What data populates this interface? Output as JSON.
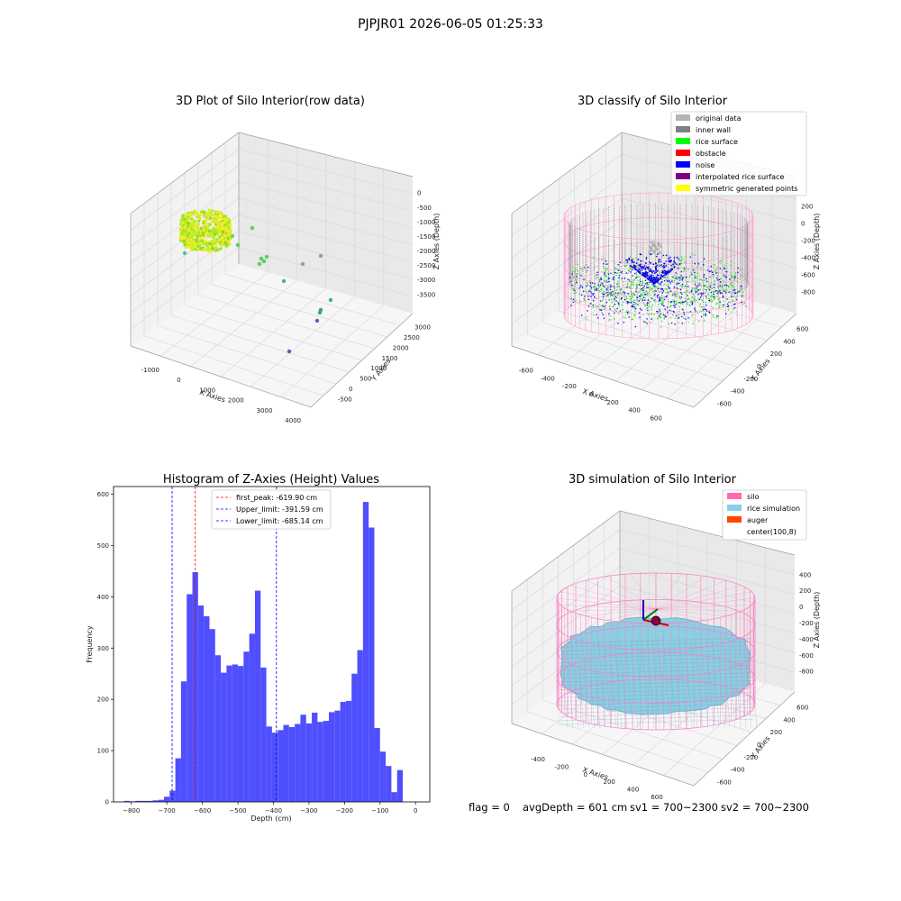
{
  "figure": {
    "suptitle": "PJPJR01 2026-06-05 01:25:33"
  },
  "panels": {
    "raw": {
      "title": "3D Plot of Silo Interior(row data)",
      "xlabel": "X Axies",
      "ylabel": "Y Axies",
      "zlabel": "Z Axies (Depth)",
      "xticks": [
        "-1000",
        "0",
        "1000",
        "2000",
        "3000",
        "4000"
      ],
      "yticks": [
        "-500",
        "0",
        "500",
        "1000",
        "1500",
        "2000",
        "2500",
        "3000"
      ],
      "zticks": [
        "0",
        "-500",
        "-1000",
        "-1500",
        "-2000",
        "-2500",
        "-3000",
        "-3500"
      ]
    },
    "classify": {
      "title": "3D classify of Silo Interior",
      "xlabel": "X Axies",
      "ylabel": "Y Axies",
      "zlabel": "Z Axies (Depth)",
      "xticks": [
        "-600",
        "-400",
        "-200",
        "0",
        "200",
        "400",
        "600"
      ],
      "yticks": [
        "600",
        "400",
        "200",
        "0",
        "-200",
        "-400",
        "-600"
      ],
      "zticks": [
        "200",
        "0",
        "-200",
        "-400",
        "-600",
        "-800"
      ],
      "legend": [
        {
          "label": "original data",
          "color": "#b4b4b4"
        },
        {
          "label": "inner wall",
          "color": "#808080"
        },
        {
          "label": "rice surface",
          "color": "#00ff00"
        },
        {
          "label": "obstacle",
          "color": "#ff0000"
        },
        {
          "label": "noise",
          "color": "#0000ff"
        },
        {
          "label": "interpolated rice surface",
          "color": "#800080"
        },
        {
          "label": "symmetric generated points",
          "color": "#ffff00"
        }
      ]
    },
    "histogram": {
      "title": "Histogram of Z-Axies (Height) Values",
      "xlabel": "Depth (cm)",
      "ylabel": "Frequency",
      "legend": [
        {
          "label": "first_peak: -619.90 cm",
          "color": "#ff0000"
        },
        {
          "label": "Upper_limit: -391.59 cm",
          "color": "#0000ff"
        },
        {
          "label": "Lower_limit: -685.14 cm",
          "color": "#0000ff"
        }
      ],
      "bar_color": "#4f4ffe"
    },
    "simulation": {
      "title": "3D simulation of Silo Interior",
      "xlabel": "X Axies",
      "ylabel": "Y Axies",
      "zlabel": "Z Axies (Depth)",
      "xticks": [
        "-400",
        "-200",
        "0",
        "200",
        "400",
        "600"
      ],
      "yticks": [
        "600",
        "400",
        "200",
        "0",
        "-200",
        "-400",
        "-600"
      ],
      "zticks": [
        "400",
        "200",
        "0",
        "-200",
        "-400",
        "-600",
        "-800"
      ],
      "legend": [
        {
          "label": "silo",
          "color": "#ff69b4"
        },
        {
          "label": "rice simulation",
          "color": "#87ceeb"
        },
        {
          "label": "auger",
          "color": "#ff4500"
        },
        {
          "label": "center(100,8)",
          "color": null
        }
      ]
    }
  },
  "status": {
    "flag": "flag = 0",
    "avgDepth": "avgDepth = 601 cm",
    "sv1": "sv1 = 700~2300",
    "sv2": "sv2 = 700~2300"
  },
  "chart_data": [
    {
      "type": "scatter",
      "title": "3D Plot of Silo Interior(row data)",
      "projection": "3d",
      "xlabel": "X Axies",
      "ylabel": "Y Axies",
      "zlabel": "Z Axies (Depth)",
      "xlim": [
        -1400,
        4300
      ],
      "ylim": [
        -700,
        3300
      ],
      "zlim": [
        -3800,
        200
      ],
      "grid": true
    },
    {
      "type": "scatter",
      "title": "3D classify of Silo Interior",
      "projection": "3d",
      "xlabel": "X Axies",
      "ylabel": "Y Axies",
      "zlabel": "Z Axies (Depth)",
      "xlim": [
        -650,
        700
      ],
      "ylim": [
        -650,
        700
      ],
      "zlim": [
        -950,
        250
      ],
      "legend_position": "top-right",
      "grid": true
    },
    {
      "type": "bar",
      "title": "Histogram of Z-Axies (Height) Values",
      "xlabel": "Depth (cm)",
      "ylabel": "Frequency",
      "xlim": [
        -850,
        40
      ],
      "ylim": [
        0,
        615
      ],
      "xticks": [
        -800,
        -700,
        -600,
        -500,
        -400,
        -300,
        -200,
        -100,
        0
      ],
      "yticks": [
        0,
        100,
        200,
        300,
        400,
        500,
        600
      ],
      "bin_width": 16,
      "bin_starts": [
        -820,
        -804,
        -788,
        -772,
        -756,
        -740,
        -724,
        -708,
        -692,
        -676,
        -660,
        -644,
        -628,
        -612,
        -596,
        -580,
        -564,
        -548,
        -532,
        -516,
        -500,
        -484,
        -468,
        -452,
        -436,
        -420,
        -404,
        -388,
        -372,
        -356,
        -340,
        -324,
        -308,
        -292,
        -276,
        -260,
        -244,
        -228,
        -212,
        -196,
        -180,
        -164,
        -148,
        -132,
        -116,
        -100,
        -84,
        -68,
        -52,
        -36,
        -20,
        -4
      ],
      "counts": [
        2,
        1,
        2,
        2,
        2,
        3,
        4,
        10,
        22,
        85,
        235,
        405,
        448,
        383,
        362,
        337,
        286,
        252,
        266,
        268,
        265,
        293,
        328,
        412,
        262,
        147,
        135,
        140,
        150,
        146,
        152,
        170,
        153,
        174,
        156,
        158,
        175,
        178,
        195,
        197,
        250,
        296,
        585,
        535,
        144,
        98,
        70,
        19,
        62,
        0,
        0,
        0
      ],
      "vlines": [
        {
          "x": -619.9,
          "color": "#ff0000",
          "label": "first_peak: -619.90 cm"
        },
        {
          "x": -391.59,
          "color": "#0000ff",
          "label": "Upper_limit: -391.59 cm"
        },
        {
          "x": -685.14,
          "color": "#0000ff",
          "label": "Lower_limit: -685.14 cm"
        }
      ],
      "legend_position": "top-center"
    },
    {
      "type": "area",
      "title": "3D simulation of Silo Interior",
      "projection": "3d",
      "xlabel": "X Axies",
      "ylabel": "Y Axies",
      "zlabel": "Z Axies (Depth)",
      "xlim": [
        -550,
        700
      ],
      "ylim": [
        -650,
        700
      ],
      "zlim": [
        -950,
        450
      ],
      "legend_position": "top-right",
      "grid": true
    }
  ]
}
